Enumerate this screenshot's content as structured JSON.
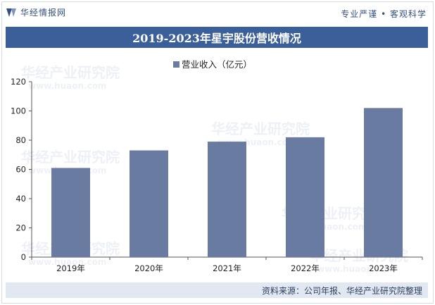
{
  "header": {
    "brand_name": "华经情报网",
    "tagline": "专业严谨 • 客观科学",
    "logo_icon": "huajing-logo-icon"
  },
  "title": "2019-2023年星宇股份营收情况",
  "watermark": {
    "text": "华经产业研究院",
    "url": "www.huaon.com"
  },
  "footer": {
    "source": "资料来源：公司年报、华经产业研究院整理"
  },
  "colors": {
    "bar": "#6a7ba2",
    "title_bg": "#3b5f98",
    "footer_bg": "#e2e8f2",
    "brand_text": "#34507f"
  },
  "chart_data": {
    "type": "bar",
    "categories": [
      "2019年",
      "2020年",
      "2021年",
      "2022年",
      "2023年"
    ],
    "series": [
      {
        "name": "营业收入（亿元）",
        "values": [
          61,
          73,
          79,
          82,
          102
        ]
      }
    ],
    "ylim": [
      0,
      120
    ],
    "yticks": [
      0,
      20,
      40,
      60,
      80,
      100,
      120
    ],
    "legend_position": "top-center",
    "grid": false
  }
}
